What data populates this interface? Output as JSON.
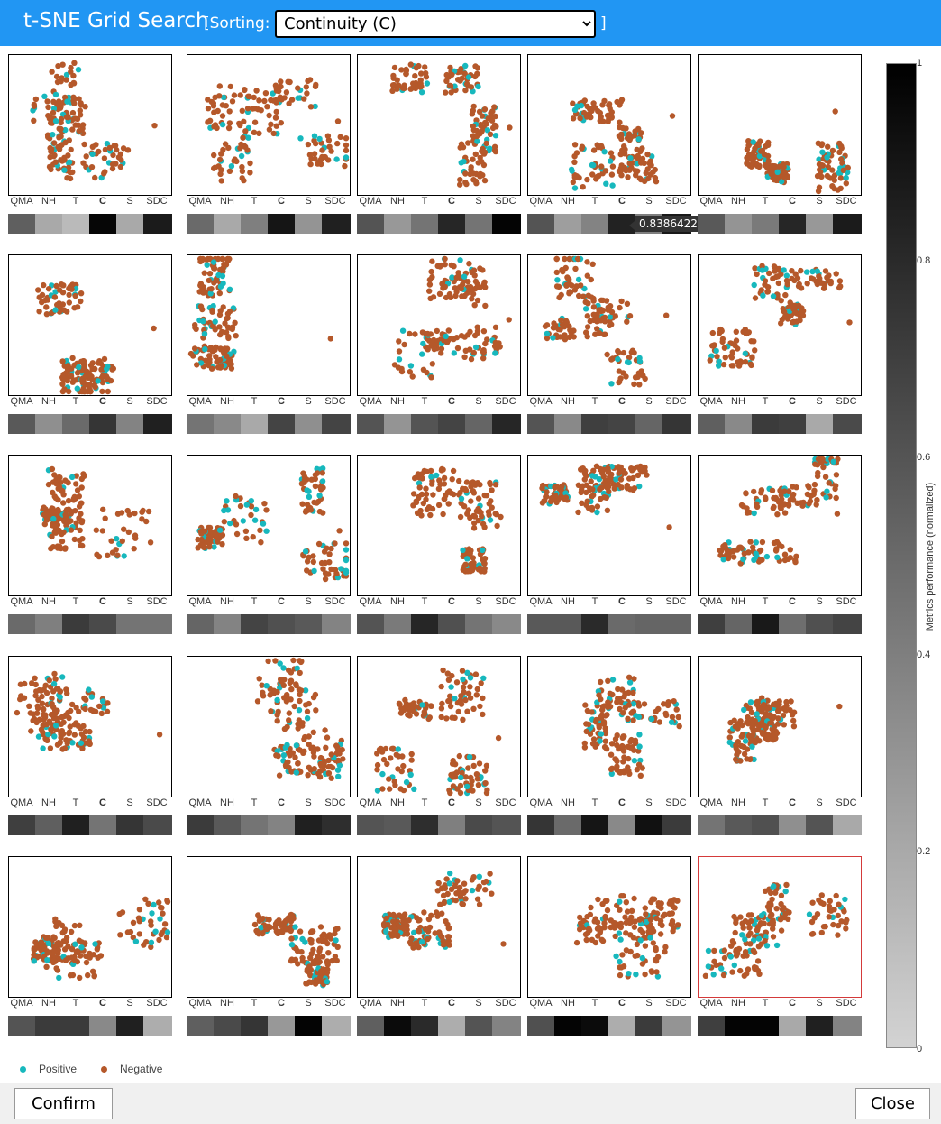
{
  "header": {
    "title": "t-SNE Grid Search",
    "sorting_open": "[Sorting:",
    "sorting_value": "Continuity (C)",
    "sorting_options": [
      "Continuity (C)"
    ],
    "sorting_close": "]"
  },
  "metric_labels": [
    "QMA",
    "NH",
    "T",
    "C",
    "S",
    "SDC"
  ],
  "highlighted_metric": "C",
  "cells": [
    {
      "metrics": [
        0.55,
        0.2,
        0.12,
        0.97,
        0.2,
        0.87
      ],
      "seed": 11
    },
    {
      "metrics": [
        0.5,
        0.2,
        0.4,
        0.9,
        0.3,
        0.85
      ],
      "seed": 12
    },
    {
      "metrics": [
        0.6,
        0.28,
        0.45,
        0.82,
        0.45,
        0.98
      ],
      "seed": 13
    },
    {
      "metrics": [
        0.6,
        0.25,
        0.38,
        0.8386422,
        0.4,
        0.88
      ],
      "seed": 14
    },
    {
      "metrics": [
        0.58,
        0.3,
        0.42,
        0.82,
        0.28,
        0.87
      ],
      "seed": 15
    },
    {
      "metrics": [
        0.58,
        0.32,
        0.5,
        0.75,
        0.38,
        0.85
      ],
      "seed": 21
    },
    {
      "metrics": [
        0.45,
        0.35,
        0.2,
        0.68,
        0.32,
        0.68
      ],
      "seed": 22
    },
    {
      "metrics": [
        0.6,
        0.3,
        0.6,
        0.68,
        0.52,
        0.82
      ],
      "seed": 23
    },
    {
      "metrics": [
        0.6,
        0.35,
        0.7,
        0.68,
        0.52,
        0.75
      ],
      "seed": 24
    },
    {
      "metrics": [
        0.55,
        0.35,
        0.72,
        0.7,
        0.2,
        0.65
      ],
      "seed": 25
    },
    {
      "metrics": [
        0.5,
        0.4,
        0.72,
        0.65,
        0.45,
        0.45
      ],
      "seed": 31
    },
    {
      "metrics": [
        0.52,
        0.38,
        0.68,
        0.62,
        0.58,
        0.38
      ],
      "seed": 32
    },
    {
      "metrics": [
        0.6,
        0.42,
        0.82,
        0.62,
        0.45,
        0.35
      ],
      "seed": 33
    },
    {
      "metrics": [
        0.58,
        0.58,
        0.8,
        0.5,
        0.52,
        0.52
      ],
      "seed": 34
    },
    {
      "metrics": [
        0.7,
        0.52,
        0.88,
        0.48,
        0.62,
        0.68
      ],
      "seed": 35
    },
    {
      "metrics": [
        0.7,
        0.55,
        0.85,
        0.45,
        0.75,
        0.65
      ],
      "seed": 41
    },
    {
      "metrics": [
        0.72,
        0.58,
        0.45,
        0.38,
        0.85,
        0.78
      ],
      "seed": 42
    },
    {
      "metrics": [
        0.6,
        0.58,
        0.78,
        0.4,
        0.65,
        0.6
      ],
      "seed": 43
    },
    {
      "metrics": [
        0.75,
        0.5,
        0.9,
        0.35,
        0.92,
        0.72
      ],
      "seed": 44
    },
    {
      "metrics": [
        0.45,
        0.58,
        0.62,
        0.32,
        0.6,
        0.2
      ],
      "seed": 45
    },
    {
      "metrics": [
        0.6,
        0.72,
        0.72,
        0.35,
        0.85,
        0.18
      ],
      "seed": 51
    },
    {
      "metrics": [
        0.55,
        0.65,
        0.75,
        0.28,
        0.98,
        0.18
      ],
      "seed": 52
    },
    {
      "metrics": [
        0.55,
        0.95,
        0.8,
        0.18,
        0.6,
        0.38
      ],
      "seed": 53
    },
    {
      "metrics": [
        0.62,
        0.98,
        0.95,
        0.18,
        0.72,
        0.3
      ],
      "seed": 54
    },
    {
      "metrics": [
        0.7,
        0.98,
        0.98,
        0.2,
        0.85,
        0.38
      ],
      "seed": 55
    }
  ],
  "selected_cell": 24,
  "tooltip": {
    "text": "0.8386422",
    "cell": 3
  },
  "colorbar": {
    "title": "Metrics performance (normalized)",
    "ticks": [
      "1",
      "0.8",
      "0.6",
      "0.4",
      "0.2",
      "0"
    ],
    "min_color": "#d3d3d3",
    "max_color": "#000000"
  },
  "legend": {
    "positive_label": "Positive",
    "negative_label": "Negative",
    "positive_color": "#17b8bd",
    "negative_color": "#b5582a"
  },
  "footer": {
    "confirm_label": "Confirm",
    "close_label": "Close"
  }
}
